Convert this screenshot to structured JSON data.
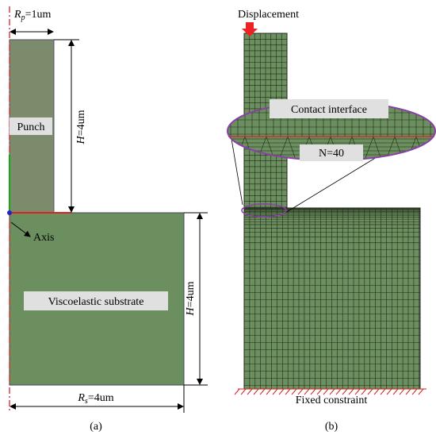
{
  "panel_a": {
    "punch_label": "Punch",
    "rp": {
      "symbol": "R",
      "sub": "p",
      "text": "=1um"
    },
    "h_punch": {
      "symbol": "H",
      "text": "=4um"
    },
    "axis_label": "Axis",
    "substrate_label": "Viscoelastic substrate",
    "h_substrate": {
      "symbol": "H",
      "text": "=4um"
    },
    "rs": {
      "symbol": "R",
      "sub": "s",
      "text": "=4um"
    },
    "caption": "(a)"
  },
  "panel_b": {
    "displacement": "Displacement",
    "contact_label": "Contact interface",
    "n_label": "N=40",
    "fixed_label": "Fixed constraint",
    "caption": "(b)"
  }
}
